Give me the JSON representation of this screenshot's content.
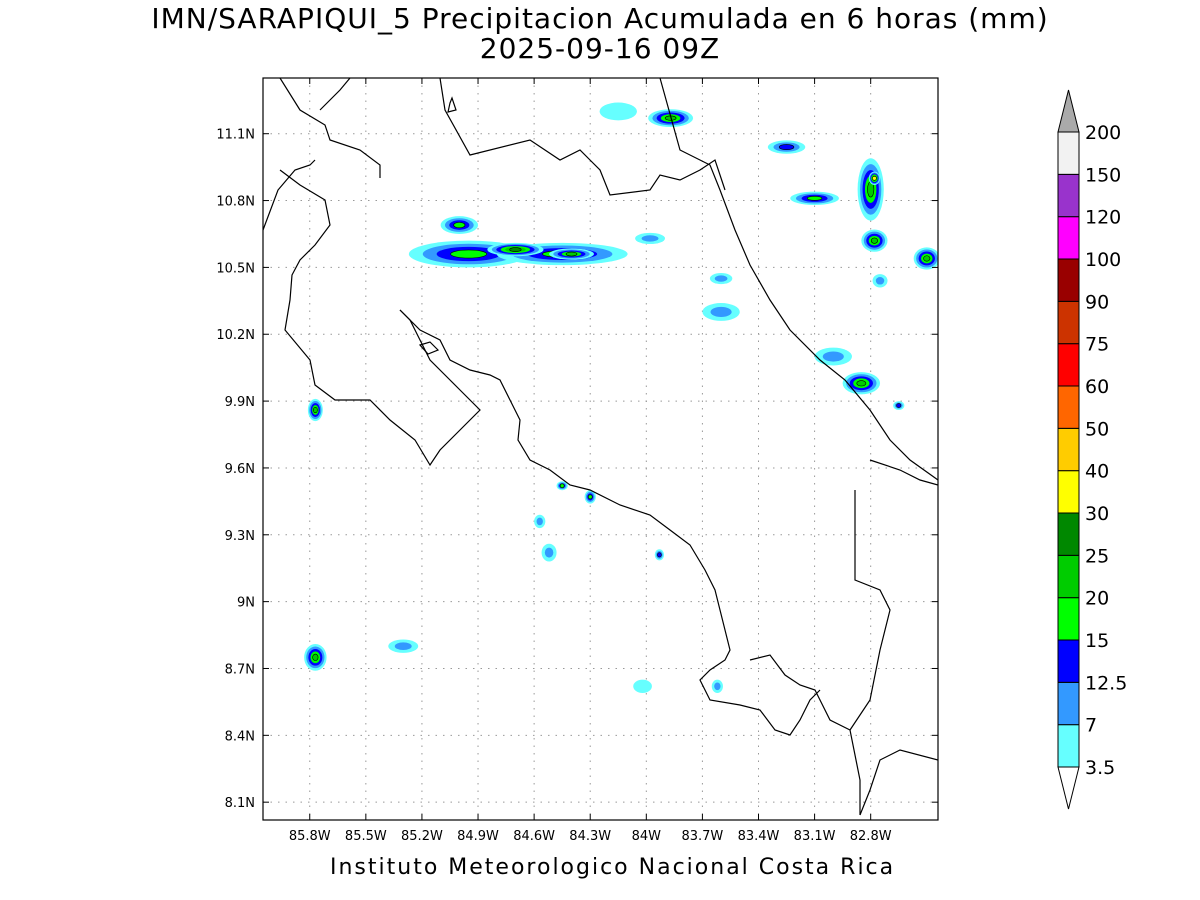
{
  "title": {
    "line1": "IMN/SARAPIQUI_5 Precipitacion Acumulada en 6 horas (mm)",
    "line2": "2025-09-16 09Z"
  },
  "footer": "Instituto Meteorologico Nacional Costa Rica",
  "map": {
    "lon_range": [
      -86.05,
      -82.44
    ],
    "lat_range": [
      8.02,
      11.35
    ],
    "x_ticks": [
      {
        "lon": -85.8,
        "label": "85.8W"
      },
      {
        "lon": -85.5,
        "label": "85.5W"
      },
      {
        "lon": -85.2,
        "label": "85.2W"
      },
      {
        "lon": -84.9,
        "label": "84.9W"
      },
      {
        "lon": -84.6,
        "label": "84.6W"
      },
      {
        "lon": -84.3,
        "label": "84.3W"
      },
      {
        "lon": -84.0,
        "label": "84W"
      },
      {
        "lon": -83.7,
        "label": "83.7W"
      },
      {
        "lon": -83.4,
        "label": "83.4W"
      },
      {
        "lon": -83.1,
        "label": "83.1W"
      },
      {
        "lon": -82.8,
        "label": "82.8W"
      }
    ],
    "y_ticks": [
      {
        "lat": 11.1,
        "label": "11.1N"
      },
      {
        "lat": 10.8,
        "label": "10.8N"
      },
      {
        "lat": 10.5,
        "label": "10.5N"
      },
      {
        "lat": 10.2,
        "label": "10.2N"
      },
      {
        "lat": 9.9,
        "label": "9.9N"
      },
      {
        "lat": 9.6,
        "label": "9.6N"
      },
      {
        "lat": 9.3,
        "label": "9.3N"
      },
      {
        "lat": 9.0,
        "label": "9N"
      },
      {
        "lat": 8.7,
        "label": "8.7N"
      },
      {
        "lat": 8.4,
        "label": "8.4N"
      },
      {
        "lat": 8.1,
        "label": "8.1N"
      }
    ],
    "grid": true
  },
  "colorbar": {
    "levels": [
      {
        "label": "3.5",
        "color": "#66ffff"
      },
      {
        "label": "7",
        "color": "#3399ff"
      },
      {
        "label": "12.5",
        "color": "#0000ff"
      },
      {
        "label": "15",
        "color": "#00ff00"
      },
      {
        "label": "20",
        "color": "#00cc00"
      },
      {
        "label": "25",
        "color": "#008800"
      },
      {
        "label": "30",
        "color": "#ffff00"
      },
      {
        "label": "40",
        "color": "#ffcc00"
      },
      {
        "label": "50",
        "color": "#ff6600"
      },
      {
        "label": "60",
        "color": "#ff0000"
      },
      {
        "label": "75",
        "color": "#cc3300"
      },
      {
        "label": "90",
        "color": "#990000"
      },
      {
        "label": "100",
        "color": "#ff00ff"
      },
      {
        "label": "120",
        "color": "#9933cc"
      },
      {
        "label": "150",
        "color": "#f2f2f2"
      },
      {
        "label": "200",
        "color": "#aaaaaa"
      }
    ]
  },
  "precip_cells": [
    {
      "lon": -84.95,
      "lat": 10.56,
      "rx": 0.32,
      "ry": 0.06,
      "level": 3
    },
    {
      "lon": -84.45,
      "lat": 10.56,
      "rx": 0.35,
      "ry": 0.05,
      "level": 3
    },
    {
      "lon": -84.7,
      "lat": 10.58,
      "rx": 0.15,
      "ry": 0.03,
      "level": 5
    },
    {
      "lon": -84.4,
      "lat": 10.56,
      "rx": 0.12,
      "ry": 0.025,
      "level": 4
    },
    {
      "lon": -85.0,
      "lat": 10.69,
      "rx": 0.1,
      "ry": 0.04,
      "level": 3
    },
    {
      "lon": -83.87,
      "lat": 11.17,
      "rx": 0.12,
      "ry": 0.04,
      "level": 4
    },
    {
      "lon": -82.8,
      "lat": 10.85,
      "rx": 0.07,
      "ry": 0.14,
      "level": 4
    },
    {
      "lon": -82.78,
      "lat": 10.9,
      "rx": 0.03,
      "ry": 0.03,
      "level": 6
    },
    {
      "lon": -82.78,
      "lat": 10.62,
      "rx": 0.07,
      "ry": 0.05,
      "level": 4
    },
    {
      "lon": -82.5,
      "lat": 10.54,
      "rx": 0.07,
      "ry": 0.05,
      "level": 4
    },
    {
      "lon": -82.85,
      "lat": 9.98,
      "rx": 0.1,
      "ry": 0.05,
      "level": 4
    },
    {
      "lon": -83.1,
      "lat": 10.81,
      "rx": 0.13,
      "ry": 0.03,
      "level": 3
    },
    {
      "lon": -83.25,
      "lat": 11.04,
      "rx": 0.1,
      "ry": 0.03,
      "level": 2
    },
    {
      "lon": -85.77,
      "lat": 9.86,
      "rx": 0.04,
      "ry": 0.05,
      "level": 4
    },
    {
      "lon": -85.77,
      "lat": 8.75,
      "rx": 0.06,
      "ry": 0.06,
      "level": 4
    },
    {
      "lon": -84.3,
      "lat": 9.47,
      "rx": 0.03,
      "ry": 0.03,
      "level": 3
    },
    {
      "lon": -84.45,
      "lat": 9.52,
      "rx": 0.03,
      "ry": 0.02,
      "level": 3
    },
    {
      "lon": -83.6,
      "lat": 10.3,
      "rx": 0.1,
      "ry": 0.04,
      "level": 1
    },
    {
      "lon": -83.6,
      "lat": 10.45,
      "rx": 0.06,
      "ry": 0.025,
      "level": 1
    },
    {
      "lon": -83.98,
      "lat": 10.63,
      "rx": 0.08,
      "ry": 0.025,
      "level": 1
    },
    {
      "lon": -84.52,
      "lat": 9.22,
      "rx": 0.04,
      "ry": 0.04,
      "level": 1
    },
    {
      "lon": -84.57,
      "lat": 9.36,
      "rx": 0.03,
      "ry": 0.03,
      "level": 1
    },
    {
      "lon": -83.93,
      "lat": 9.21,
      "rx": 0.025,
      "ry": 0.025,
      "level": 2
    },
    {
      "lon": -85.3,
      "lat": 8.8,
      "rx": 0.08,
      "ry": 0.03,
      "level": 1
    },
    {
      "lon": -83.0,
      "lat": 10.1,
      "rx": 0.1,
      "ry": 0.04,
      "level": 1
    },
    {
      "lon": -82.65,
      "lat": 9.88,
      "rx": 0.03,
      "ry": 0.02,
      "level": 2
    },
    {
      "lon": -82.75,
      "lat": 10.44,
      "rx": 0.04,
      "ry": 0.03,
      "level": 1
    },
    {
      "lon": -83.62,
      "lat": 8.62,
      "rx": 0.03,
      "ry": 0.03,
      "level": 1
    },
    {
      "lon": -84.02,
      "lat": 8.62,
      "rx": 0.05,
      "ry": 0.03,
      "level": 0
    },
    {
      "lon": -84.15,
      "lat": 11.2,
      "rx": 0.1,
      "ry": 0.04,
      "level": 0
    }
  ]
}
